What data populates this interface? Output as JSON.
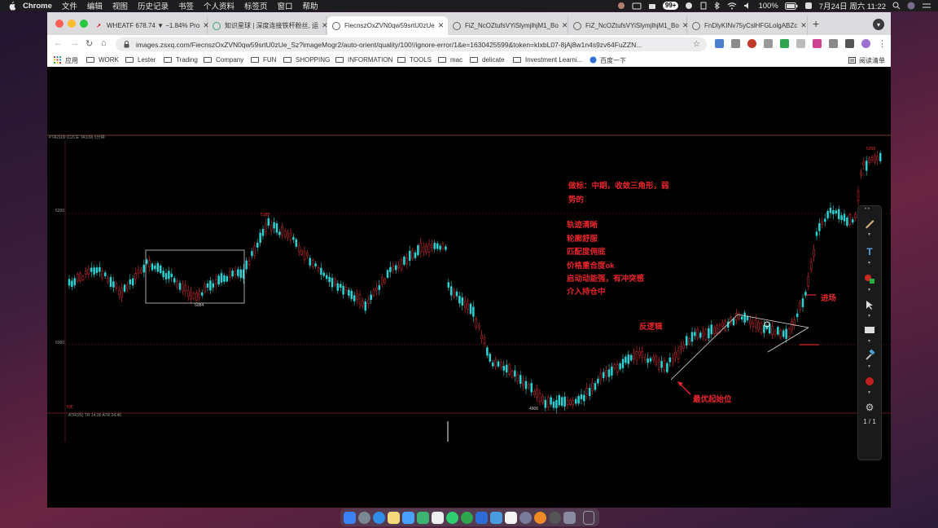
{
  "menubar": {
    "app_name": "Chrome",
    "items": [
      "文件",
      "编辑",
      "视图",
      "历史记录",
      "书签",
      "个人资料",
      "标签页",
      "窗口",
      "帮助"
    ],
    "notification_count": "99+",
    "battery": "100%",
    "datetime": "7月24日 周六 11:22"
  },
  "tabs": [
    {
      "title": "WHEATF 678.74 ▼ −1.84% Pro",
      "active": false
    },
    {
      "title": "知识星球 | 深度连接铁杆粉丝, 运",
      "active": false
    },
    {
      "title": "FiecnszOxZVN0qw59srtU0zUe",
      "active": true
    },
    {
      "title": "FiZ_NcOZtufsVYiSlymjlhjM1_Bo",
      "active": false
    },
    {
      "title": "FiZ_NcOZtufsVYiSlymjlhjM1_Bo",
      "active": false
    },
    {
      "title": "FnDlyKINv75yCslHFGLolgABZc",
      "active": false
    }
  ],
  "omnibox": {
    "url": "images.zsxq.com/FiecnszOxZVN0qw59srtU0zUe_Sz?imageMogr2/auto-orient/quality/100!/ignore-error/1&e=1630425599&token=kIxbL07-8jAj8w1n4s9zv64FuZZN..."
  },
  "bookmarks": [
    {
      "label": "应用",
      "type": "apps"
    },
    {
      "label": "WORK",
      "type": "folder"
    },
    {
      "label": "Lester",
      "type": "folder"
    },
    {
      "label": "Trading",
      "type": "folder"
    },
    {
      "label": "Company",
      "type": "folder"
    },
    {
      "label": "FUN",
      "type": "folder"
    },
    {
      "label": "SHOPPING",
      "type": "folder"
    },
    {
      "label": "INFORMATION",
      "type": "folder"
    },
    {
      "label": "TOOLS",
      "type": "folder"
    },
    {
      "label": "mac",
      "type": "folder"
    },
    {
      "label": "delicate",
      "type": "folder"
    },
    {
      "label": "Investment Learni...",
      "type": "folder"
    },
    {
      "label": "百度一下",
      "type": "link"
    }
  ],
  "reading_list": "阅读清单",
  "chart": {
    "header": "PTA2109 (CZCE TA109) 5分钟",
    "level_high": "5200",
    "level_low": "5000",
    "label_5188": "5188",
    "label_5084": "5084",
    "label_4906": "4906",
    "label_top": "5268",
    "lower_panel_label": "5天",
    "indicator": "ATR(26)  TR 14.00  ATR 24.46",
    "page_indicator": "1 / 1"
  },
  "annotations": {
    "line1": "做标：中期，收敛三角形，弱",
    "line2": "势的",
    "point1": "轨迹清晰",
    "point2": "轮廓舒服",
    "point3": "匹配度佣底",
    "point4": "价格重合度ok",
    "point5": "启动动能强，有冲突感",
    "point6": "介入持仓中",
    "reverse_logic": "反逻辑",
    "entry": "进场",
    "best_start": "最优起始位"
  },
  "colors": {
    "up_candle": "#e03030",
    "down_candle": "#2ad4d4",
    "annotation": "#e8262b",
    "chrome_active_tab": "#ffffff"
  }
}
